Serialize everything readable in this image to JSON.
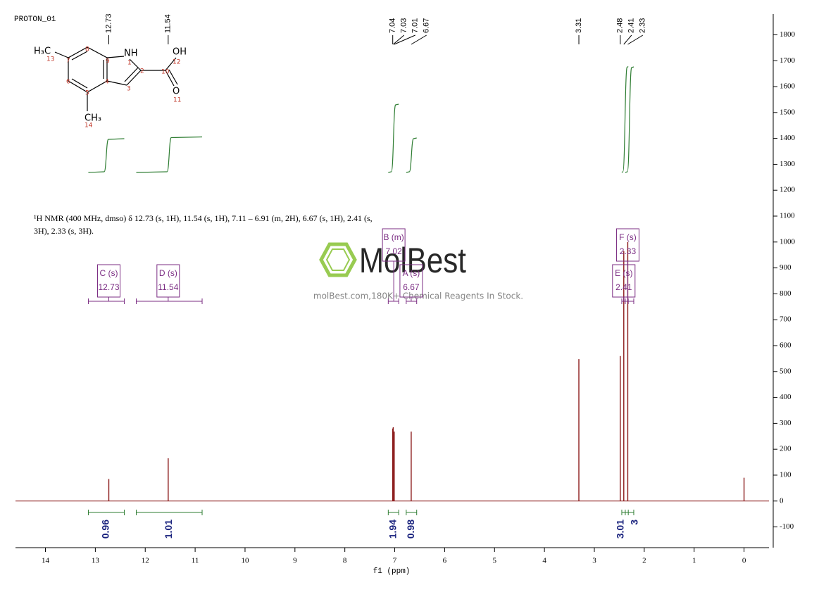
{
  "chart_data": {
    "type": "nmr",
    "title": "PROTON_01",
    "description": [
      "¹H NMR (400 MHz, dmso) δ 12.73 (s, 1H), 11.54 (s, 1H), 7.11 – 6.91 (m, 2H), 6.67 (s, 1H), 2.41 (s,",
      "3H), 2.33 (s, 3H)."
    ],
    "x_label": "f1 (ppm)",
    "xlim": [
      14.6,
      -0.5
    ],
    "xticks": [
      14,
      13,
      12,
      11,
      10,
      9,
      8,
      7,
      6,
      5,
      4,
      3,
      2,
      1,
      0
    ],
    "ylim": [
      -180,
      1880
    ],
    "yticks": [
      -100,
      0,
      100,
      200,
      300,
      400,
      500,
      600,
      700,
      800,
      900,
      1000,
      1100,
      1200,
      1300,
      1400,
      1500,
      1600,
      1700,
      1800
    ],
    "color": "#8b1a1a",
    "integral_color": "#2e7d32",
    "multiplet_color": "#7b2d83",
    "integral_label_color": "#1a237e",
    "peaks": {
      "x": [
        12.73,
        11.54,
        7.04,
        7.03,
        7.01,
        6.67,
        3.31,
        2.48,
        2.41,
        2.33,
        0
      ],
      "values": [
        85,
        165,
        280,
        285,
        268,
        268,
        548,
        560,
        965,
        1000,
        90
      ]
    },
    "peak_labels": [
      12.73,
      11.54,
      7.04,
      7.03,
      7.01,
      6.67,
      3.31,
      2.48,
      2.41,
      2.33
    ],
    "integrals": [
      {
        "from": 13.14,
        "to": 12.42,
        "value": 0.96,
        "label": "C (s)",
        "shift": 12.73
      },
      {
        "from": 12.18,
        "to": 10.86,
        "value": 1.01,
        "label": "D (s)",
        "shift": 11.54
      },
      {
        "from": 7.13,
        "to": 6.92,
        "value": 1.94,
        "label": "B (m)",
        "shift": 7.02
      },
      {
        "from": 6.77,
        "to": 6.56,
        "value": 0.98,
        "label": "A (s)",
        "shift": 6.67
      },
      {
        "from": 2.45,
        "to": 2.32,
        "value": 3.01,
        "label": "E (s)",
        "shift": 2.41
      },
      {
        "from": 2.38,
        "to": 2.21,
        "value": 3.0,
        "label": "F (s)",
        "shift": 2.33
      }
    ]
  },
  "structure": {
    "atoms": [
      "H₃C",
      "NH",
      "OH",
      "O",
      "CH₃"
    ],
    "numbers": [
      13,
      8,
      9,
      1,
      7,
      2,
      10,
      12,
      6,
      4,
      3,
      5,
      11,
      14
    ]
  },
  "watermark": {
    "brand": "MolBest",
    "tagline": "molBest.com,180K+ Chemical Reagents In Stock."
  }
}
